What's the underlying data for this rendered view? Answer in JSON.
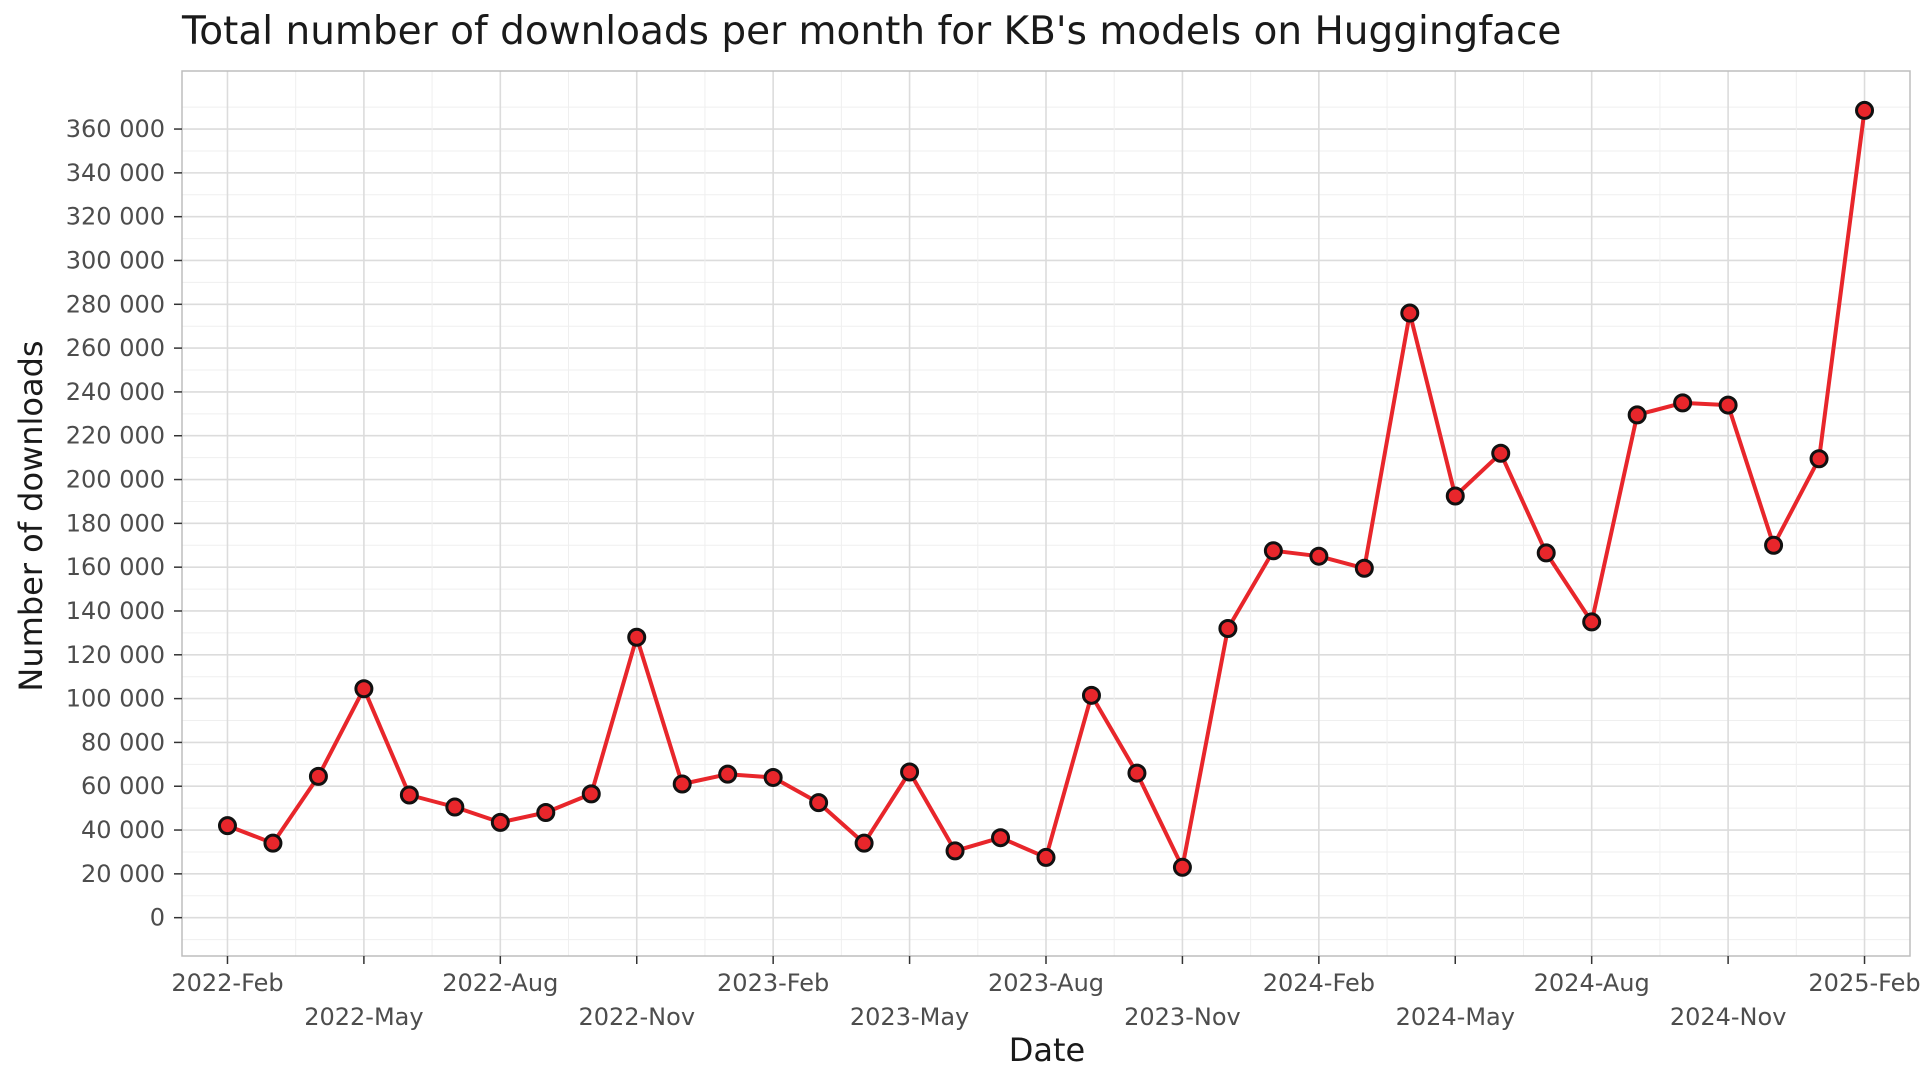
{
  "chart_data": {
    "type": "line",
    "title": "Total number of downloads per month for KB's models on Huggingface",
    "xlabel": "Date",
    "ylabel": "Number of downloads",
    "x": [
      "2022-02",
      "2022-03",
      "2022-04",
      "2022-05",
      "2022-06",
      "2022-07",
      "2022-08",
      "2022-09",
      "2022-10",
      "2022-11",
      "2022-12",
      "2023-01",
      "2023-02",
      "2023-03",
      "2023-04",
      "2023-05",
      "2023-06",
      "2023-07",
      "2023-08",
      "2023-09",
      "2023-10",
      "2023-11",
      "2023-12",
      "2024-01",
      "2024-02",
      "2024-03",
      "2024-04",
      "2024-05",
      "2024-06",
      "2024-07",
      "2024-08",
      "2024-09",
      "2024-10",
      "2024-11",
      "2024-12",
      "2025-01",
      "2025-02"
    ],
    "series": [
      {
        "values": [
          42000,
          34000,
          64500,
          104500,
          56000,
          50500,
          43500,
          48000,
          56500,
          128000,
          61000,
          65500,
          64000,
          52500,
          34000,
          66500,
          30500,
          36500,
          27500,
          101500,
          66000,
          23000,
          132000,
          167500,
          165000,
          159500,
          276000,
          192500,
          212000,
          166500,
          135000,
          229500,
          235000,
          234000,
          170000,
          209500,
          368500
        ]
      }
    ],
    "x_tick_labels": [
      "2022-Feb",
      "2022-May",
      "2022-Aug",
      "2022-Nov",
      "2023-Feb",
      "2023-May",
      "2023-Aug",
      "2023-Nov",
      "2024-Feb",
      "2024-May",
      "2024-Aug",
      "2024-Nov",
      "2025-Feb"
    ],
    "x_tick_dates": [
      "2022-02",
      "2022-05",
      "2022-08",
      "2022-11",
      "2023-02",
      "2023-05",
      "2023-08",
      "2023-11",
      "2024-02",
      "2024-05",
      "2024-08",
      "2024-11",
      "2025-02"
    ],
    "y_tick_labels": [
      "0",
      "20 000",
      "40 000",
      "60 000",
      "80 000",
      "100 000",
      "120 000",
      "140 000",
      "160 000",
      "180 000",
      "200 000",
      "220 000",
      "240 000",
      "260 000",
      "280 000",
      "300 000",
      "320 000",
      "340 000",
      "360 000"
    ],
    "ylim": [
      -17500,
      386500
    ],
    "xlim": [
      "2022-01",
      "2025-03"
    ],
    "grid": true,
    "line_color": "#e8262b",
    "marker_fill": "#e8262b",
    "marker_edge": "#111111",
    "grid_major_color": "#dcdcdc",
    "grid_minor_color": "#efefef",
    "panel_border_color": "#bdbdbd"
  }
}
